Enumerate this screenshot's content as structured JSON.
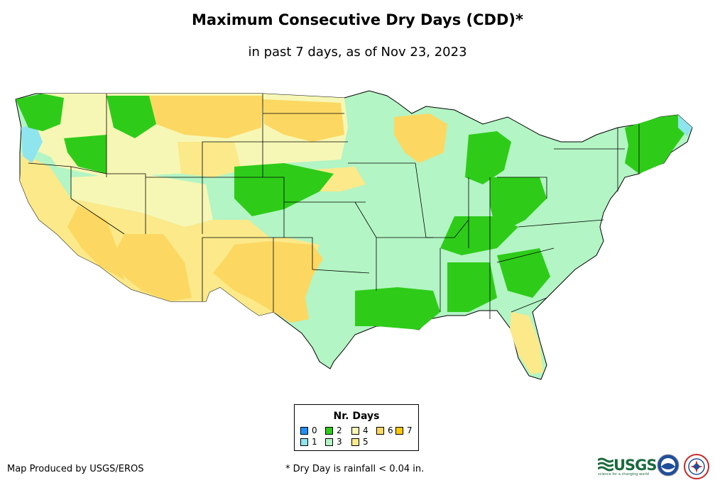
{
  "title": "Maximum Consecutive Dry Days (CDD)*",
  "subtitle": "in past 7 days, as of Nov 23, 2023",
  "legend": {
    "title": "Nr. Days",
    "items": [
      {
        "label": "0",
        "color": "#1e90ff"
      },
      {
        "label": "1",
        "color": "#8ee5ee"
      },
      {
        "label": "2",
        "color": "#2ecc19"
      },
      {
        "label": "3",
        "color": "#b3f5c4"
      },
      {
        "label": "4",
        "color": "#f7f7b5"
      },
      {
        "label": "5",
        "color": "#fbe98a"
      },
      {
        "label": "6",
        "color": "#fcd862"
      },
      {
        "label": "7",
        "color": "#ffc800"
      }
    ]
  },
  "credit": "Map Produced by USGS/EROS",
  "footnote": "* Dry Day is rainfall < 0.04 in.",
  "logos": {
    "usgs_wordmark": "USGS",
    "usgs_tagline": "science for a changing world",
    "noaa_seal": "noaa",
    "nws_seal": "NATIONAL WEATHER SERVICE"
  },
  "map": {
    "region": "Contiguous United States",
    "state_border_color": "#000000"
  }
}
